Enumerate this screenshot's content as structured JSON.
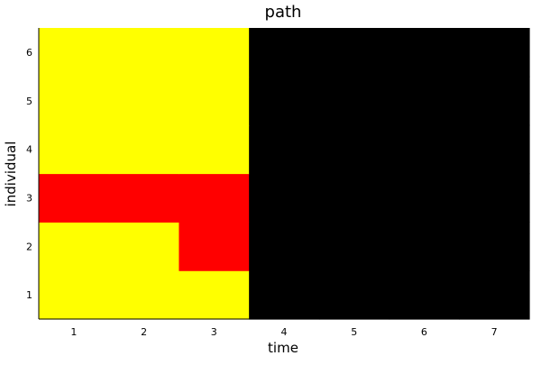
{
  "chart_data": {
    "type": "heatmap",
    "title": "path",
    "xlabel": "time",
    "ylabel": "individual",
    "x": [
      1,
      2,
      3,
      4,
      5,
      6,
      7
    ],
    "y": [
      1,
      2,
      3,
      4,
      5,
      6
    ],
    "xlim": [
      0.5,
      7.5
    ],
    "ylim": [
      0.5,
      6.5
    ],
    "xticks": [
      "1",
      "2",
      "3",
      "4",
      "5",
      "6",
      "7"
    ],
    "yticks": [
      "1",
      "2",
      "3",
      "4",
      "5",
      "6"
    ],
    "grid": false,
    "legend": "none",
    "colors": {
      "S": "#ffff00",
      "I": "#ff0000",
      "R": "#000000"
    },
    "cells": [
      [
        "S",
        "S",
        "S",
        "R",
        "R",
        "R",
        "R"
      ],
      [
        "S",
        "S",
        "I",
        "R",
        "R",
        "R",
        "R"
      ],
      [
        "I",
        "I",
        "I",
        "R",
        "R",
        "R",
        "R"
      ],
      [
        "S",
        "S",
        "S",
        "R",
        "R",
        "R",
        "R"
      ],
      [
        "S",
        "S",
        "S",
        "R",
        "R",
        "R",
        "R"
      ],
      [
        "S",
        "S",
        "S",
        "R",
        "R",
        "R",
        "R"
      ]
    ]
  }
}
